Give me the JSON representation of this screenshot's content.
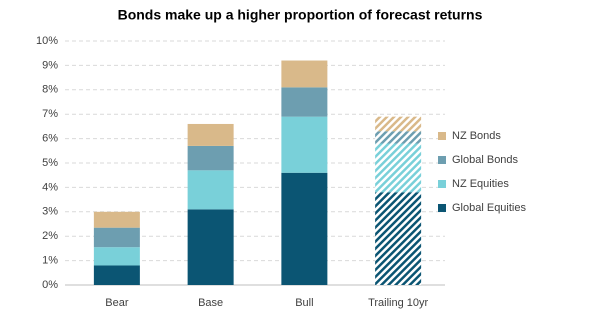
{
  "chart_data": {
    "type": "stacked-bar",
    "title": "Bonds make up a higher proportion of forecast returns",
    "categories": [
      "Bear",
      "Base",
      "Bull",
      "Trailing 10yr"
    ],
    "hatched": [
      false,
      false,
      false,
      true
    ],
    "series": [
      {
        "name": "Global Equities",
        "color": "#0b5573",
        "values": [
          0.8,
          3.1,
          4.6,
          3.8
        ]
      },
      {
        "name": "NZ Equities",
        "color": "#79d0d9",
        "values": [
          0.75,
          1.6,
          2.3,
          2.0
        ]
      },
      {
        "name": "Global Bonds",
        "color": "#6d9eb0",
        "values": [
          0.8,
          1.0,
          1.2,
          0.5
        ]
      },
      {
        "name": "NZ Bonds",
        "color": "#d9b98a",
        "values": [
          0.65,
          0.9,
          1.1,
          0.6
        ]
      }
    ],
    "ylim": [
      0,
      10
    ],
    "yticks": [
      {
        "value": 0,
        "label": "0%"
      },
      {
        "value": 1,
        "label": "1%"
      },
      {
        "value": 2,
        "label": "2%"
      },
      {
        "value": 3,
        "label": "3%"
      },
      {
        "value": 4,
        "label": "4%"
      },
      {
        "value": 5,
        "label": "5%"
      },
      {
        "value": 6,
        "label": "6%"
      },
      {
        "value": 7,
        "label": "7%"
      },
      {
        "value": 8,
        "label": "8%"
      },
      {
        "value": 9,
        "label": "9%"
      },
      {
        "value": 10,
        "label": "10%"
      }
    ],
    "grid": true,
    "legend": "right"
  }
}
